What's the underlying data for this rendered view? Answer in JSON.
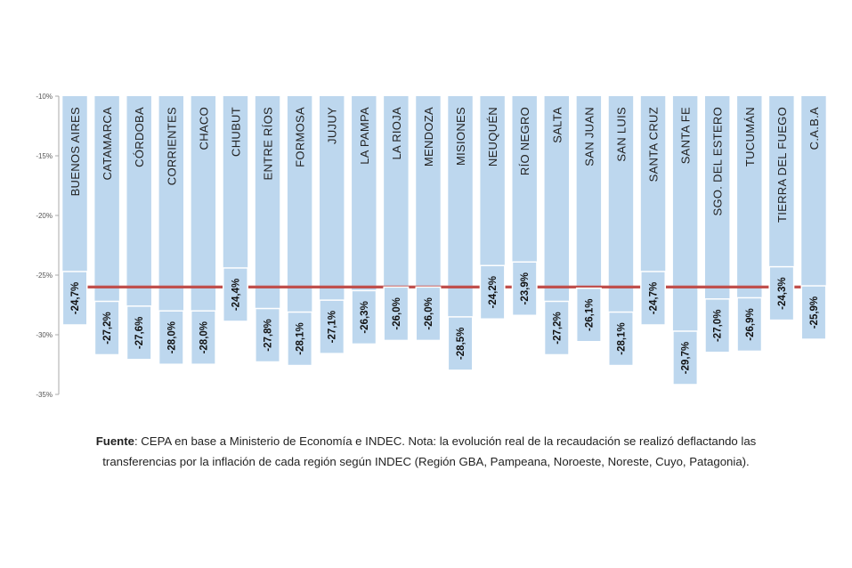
{
  "chart_data": {
    "type": "bar",
    "categories": [
      "BUENOS AIRES",
      "CATAMARCA",
      "CÓRDOBA",
      "CORRIENTES",
      "CHACO",
      "CHUBUT",
      "ENTRE RÍOS",
      "FORMOSA",
      "JUJUY",
      "LA PAMPA",
      "LA RIOJA",
      "MENDOZA",
      "MISIONES",
      "NEUQUÉN",
      "RÍO NEGRO",
      "SALTA",
      "SAN JUAN",
      "SAN LUIS",
      "SANTA CRUZ",
      "SANTA FE",
      "SGO. DEL ESTERO",
      "TUCUMÁN",
      "TIERRA DEL FUEGO",
      "C.A.B.A"
    ],
    "values": [
      -24.7,
      -27.2,
      -27.6,
      -28.0,
      -28.0,
      -24.4,
      -27.8,
      -28.1,
      -27.1,
      -26.3,
      -26.0,
      -26.0,
      -28.5,
      -24.2,
      -23.9,
      -27.2,
      -26.1,
      -28.1,
      -24.7,
      -29.7,
      -27.0,
      -26.9,
      -24.3,
      -25.9
    ],
    "value_labels": [
      "-24,7%",
      "-27,2%",
      "-27,6%",
      "-28,0%",
      "-28,0%",
      "-24,4%",
      "-27,8%",
      "-28,1%",
      "-27,1%",
      "-26,3%",
      "-26,0%",
      "-26,0%",
      "-28,5%",
      "-24,2%",
      "-23,9%",
      "-27,2%",
      "-26,1%",
      "-28,1%",
      "-24,7%",
      "-29,7%",
      "-27,0%",
      "-26,9%",
      "-24,3%",
      "-25,9%"
    ],
    "ylim": [
      -35,
      -10
    ],
    "yticks": [
      -10,
      -15,
      -20,
      -25,
      -30,
      -35
    ],
    "ytick_labels": [
      "-10%",
      "-15%",
      "-20%",
      "-25%",
      "-30%",
      "-35%"
    ],
    "reference_line": -26.0,
    "colors": {
      "bar": "#bdd7ee",
      "line": "#c0504d",
      "axis": "#aaaaaa"
    }
  },
  "note": {
    "source_label": "Fuente",
    "source_text": ": CEPA en base a Ministerio de Economía e INDEC. Nota: la evolución real de la recaudación se realizó deflactando las",
    "line2": "transferencias por la inflación de cada región según INDEC (Región GBA, Pampeana, Noroeste, Noreste, Cuyo, Patagonia)."
  }
}
